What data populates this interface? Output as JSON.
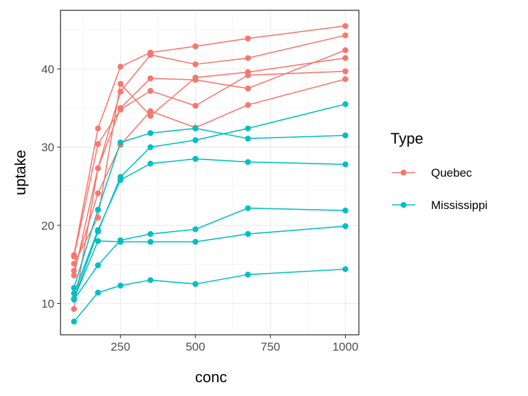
{
  "chart_data": {
    "type": "line",
    "xlabel": "conc",
    "ylabel": "uptake",
    "xlim": [
      50,
      1045
    ],
    "ylim": [
      6,
      47.5
    ],
    "x_ticks": [
      250,
      500,
      750,
      1000
    ],
    "x_tick_labels": [
      "250",
      "500",
      "750",
      "1000"
    ],
    "y_ticks": [
      10,
      20,
      30,
      40
    ],
    "y_tick_labels": [
      "10",
      "20",
      "30",
      "40"
    ],
    "grid": true,
    "legend": {
      "title": "Type",
      "placement": "right"
    },
    "x": [
      95,
      175,
      250,
      350,
      500,
      675,
      1000
    ],
    "groups": [
      {
        "name": "Quebec",
        "color": "#F8766D"
      },
      {
        "name": "Mississippi",
        "color": "#00BFC4"
      }
    ],
    "series": [
      {
        "type": "Quebec",
        "values": [
          16.0,
          30.4,
          34.8,
          37.2,
          35.3,
          39.2,
          39.7
        ]
      },
      {
        "type": "Quebec",
        "values": [
          13.6,
          27.3,
          37.1,
          41.8,
          40.6,
          41.4,
          44.3
        ]
      },
      {
        "type": "Quebec",
        "values": [
          16.2,
          32.4,
          40.3,
          42.1,
          42.9,
          43.9,
          45.5
        ]
      },
      {
        "type": "Quebec",
        "values": [
          14.2,
          24.1,
          30.3,
          34.6,
          32.5,
          35.4,
          38.7
        ]
      },
      {
        "type": "Quebec",
        "values": [
          9.3,
          27.3,
          35.0,
          38.8,
          38.6,
          37.5,
          42.4
        ]
      },
      {
        "type": "Quebec",
        "values": [
          15.1,
          21.0,
          38.1,
          34.0,
          38.9,
          39.6,
          41.4
        ]
      },
      {
        "type": "Mississippi",
        "values": [
          10.6,
          19.2,
          26.2,
          30.0,
          30.9,
          32.4,
          35.5
        ]
      },
      {
        "type": "Mississippi",
        "values": [
          12.0,
          22.0,
          30.6,
          31.8,
          32.4,
          31.1,
          31.5
        ]
      },
      {
        "type": "Mississippi",
        "values": [
          11.3,
          19.4,
          25.8,
          27.9,
          28.5,
          28.1,
          27.8
        ]
      },
      {
        "type": "Mississippi",
        "values": [
          10.5,
          14.9,
          18.1,
          18.9,
          19.5,
          22.2,
          21.9
        ]
      },
      {
        "type": "Mississippi",
        "values": [
          7.7,
          11.4,
          12.3,
          13.0,
          12.5,
          13.7,
          14.4
        ]
      },
      {
        "type": "Mississippi",
        "values": [
          10.6,
          18.0,
          17.9,
          17.9,
          17.9,
          18.9,
          19.9
        ]
      }
    ]
  }
}
